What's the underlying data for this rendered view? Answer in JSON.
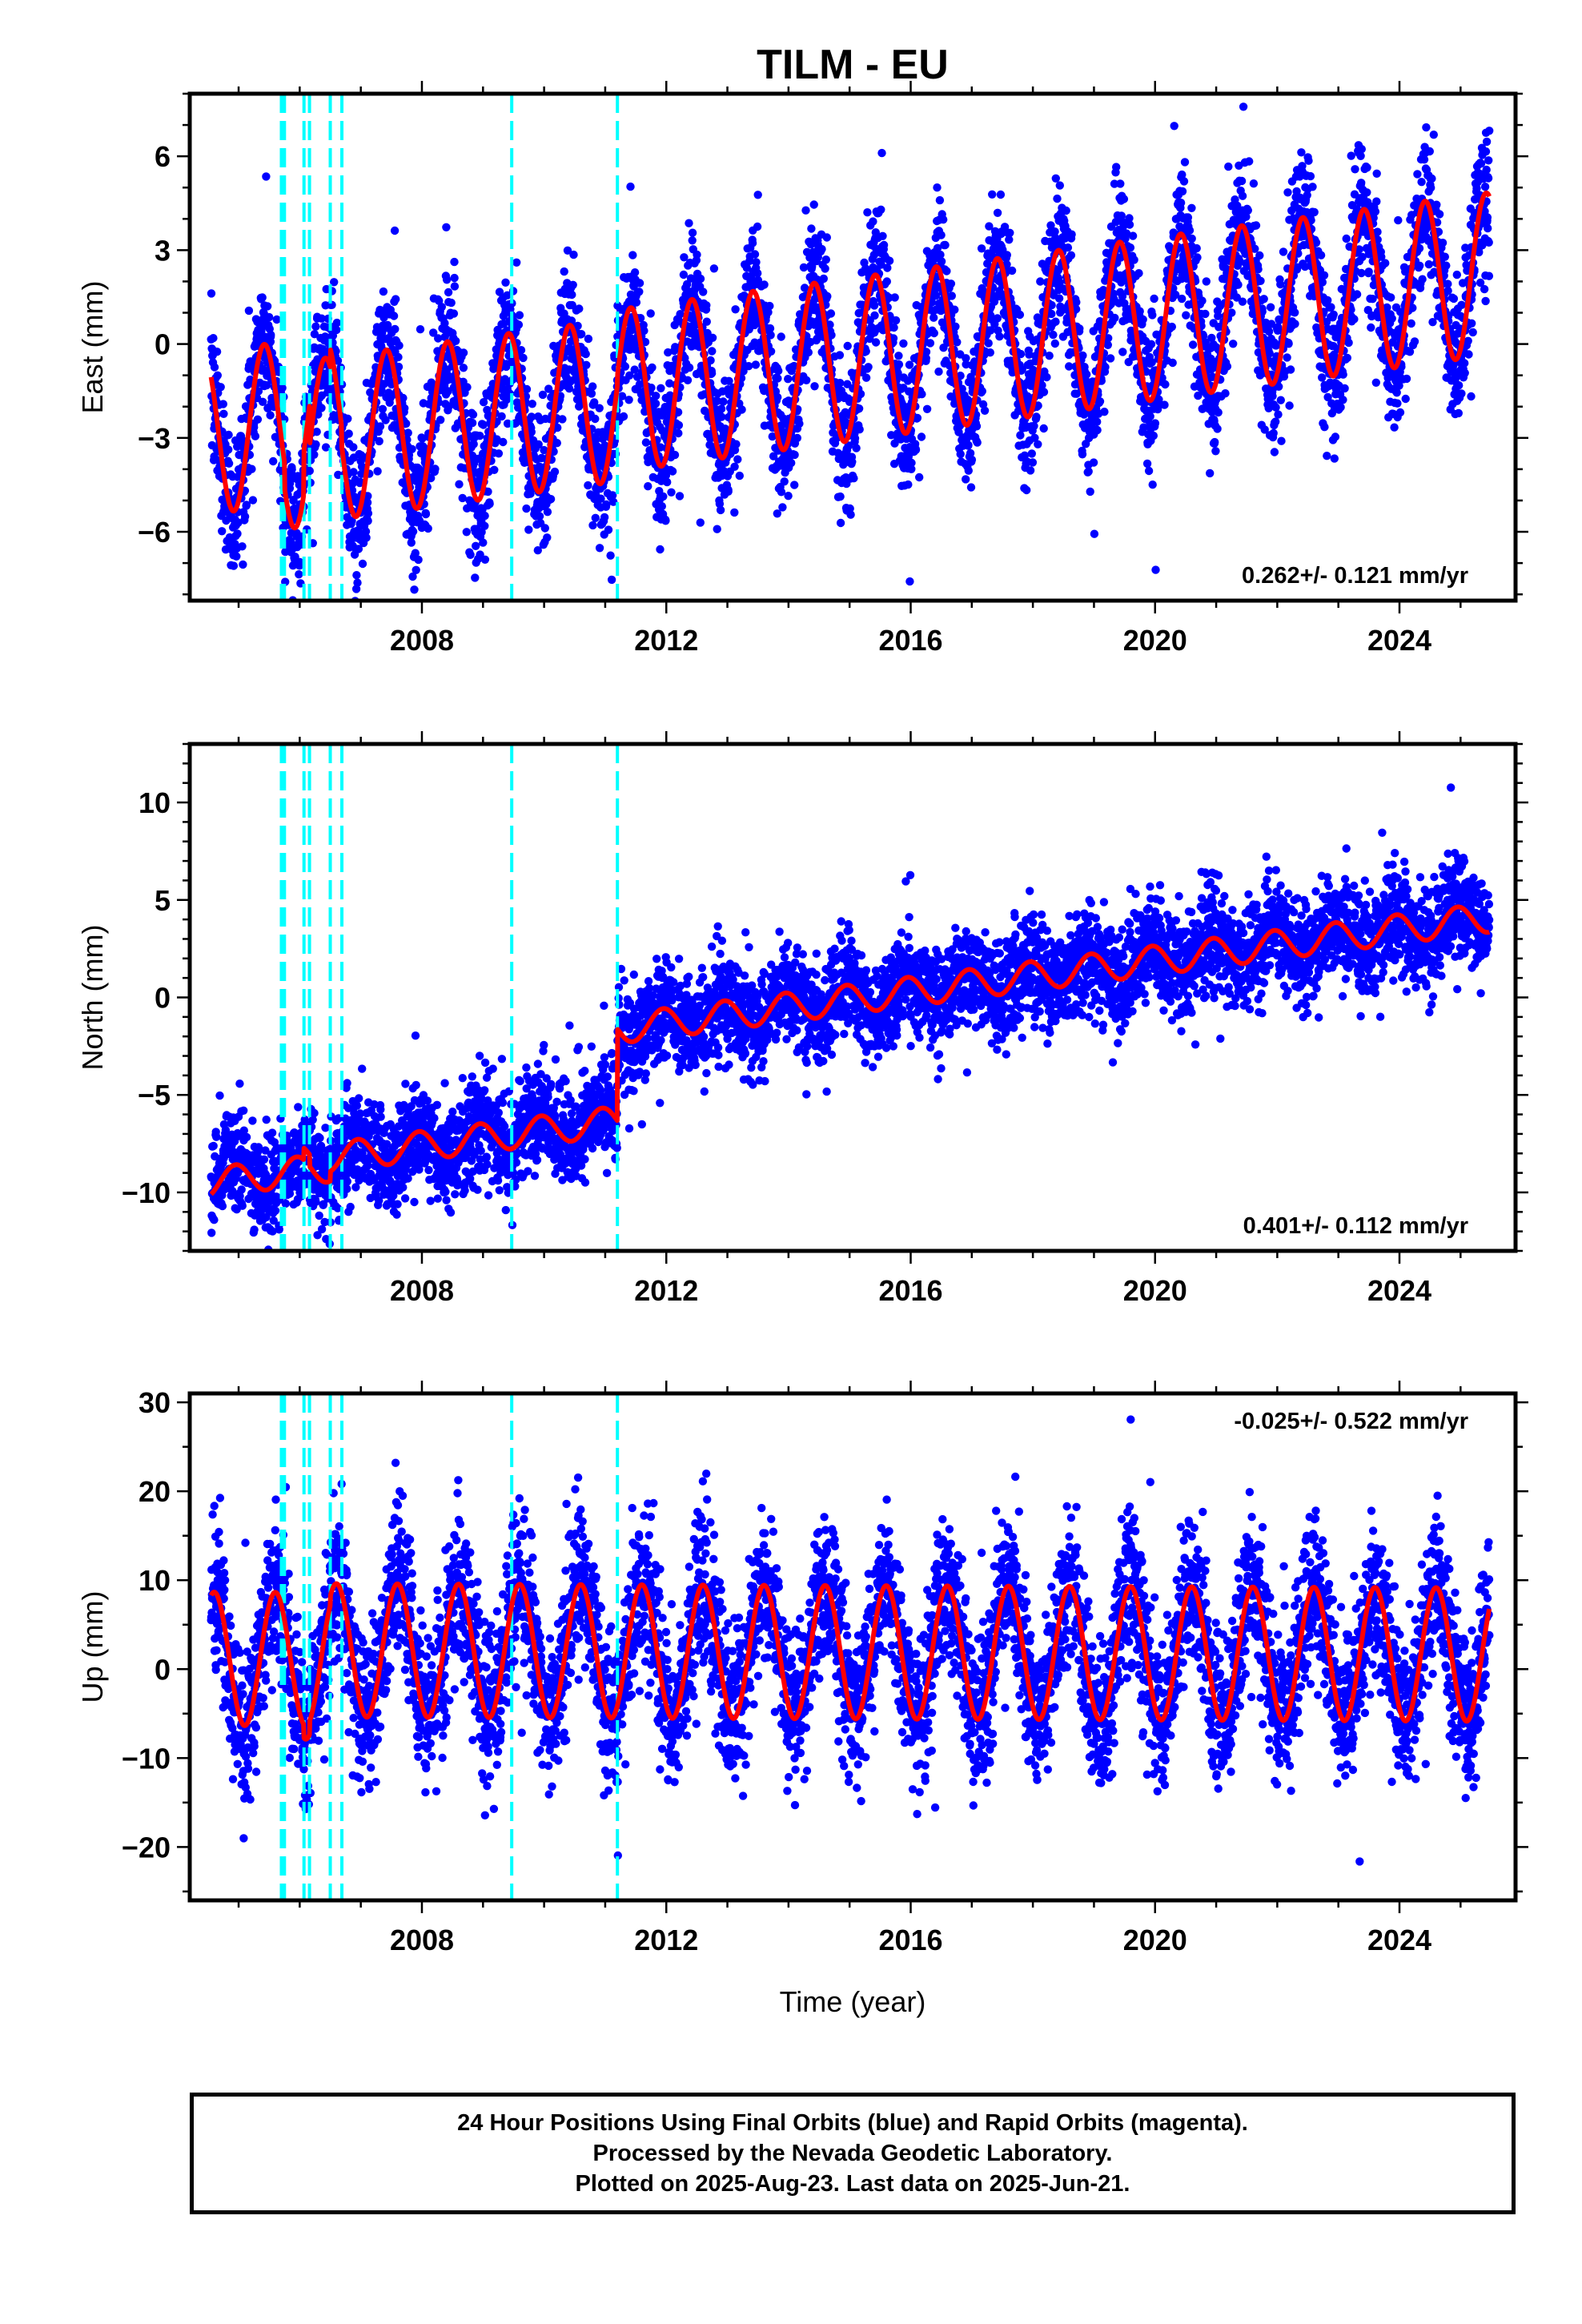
{
  "chart_data": {
    "type": "scatter",
    "title": "TILM - EU",
    "xlabel": "Time (year)",
    "x_range": [
      2004.2,
      2025.9
    ],
    "x_ticks": [
      2008,
      2012,
      2016,
      2020,
      2024
    ],
    "x_tick_labels": [
      "2008",
      "2012",
      "2016",
      "2020",
      "2024"
    ],
    "x_minor_step": 1,
    "data_span": [
      2004.55,
      2025.47
    ],
    "breaks": [
      2005.7,
      2005.75,
      2006.07,
      2006.16,
      2006.5,
      2006.69,
      2009.47,
      2011.2
    ],
    "legend": "none",
    "grid": false,
    "panels": [
      {
        "id": "east",
        "ylabel": "East (mm)",
        "ylim": [
          -8.2,
          8.0
        ],
        "y_ticks": [
          -6,
          -3,
          0,
          3,
          6
        ],
        "y_tick_labels": [
          "−6",
          "−3",
          "0",
          "3",
          "6"
        ],
        "y_minor_step": 1,
        "rate_label": "0.262+/- 0.121 mm/yr",
        "rate_position": "bottom-right",
        "series_points": {
          "name": "",
          "color": "#0000ff",
          "noise_sd": 1.1,
          "model_ref": "fit_line",
          "count": 5600
        },
        "fit_line": {
          "color": "#ff0000",
          "ref_year": 2015.0,
          "offset_at_ref": -0.5,
          "rate": 0.262,
          "annual_amplitude": 2.6,
          "annual_peak_doy": 0.42,
          "steps": [
            [
              2005.75,
              -0.8
            ],
            [
              2006.07,
              1.4
            ],
            [
              2006.16,
              -1.3
            ],
            [
              2006.5,
              0.6
            ],
            [
              2006.69,
              -0.6
            ],
            [
              2011.2,
              0.3
            ]
          ]
        }
      },
      {
        "id": "north",
        "ylabel": "North (mm)",
        "ylim": [
          -13.0,
          13.0
        ],
        "y_ticks": [
          -10,
          -5,
          0,
          5,
          10
        ],
        "y_tick_labels": [
          "−10",
          "−5",
          "0",
          "5",
          "10"
        ],
        "y_minor_step": 1,
        "rate_label": "0.401+/- 0.112 mm/yr",
        "rate_position": "bottom-right",
        "series_points": {
          "name": "",
          "color": "#0000ff",
          "noise_sd": 1.3,
          "model_ref": "fit_line",
          "count": 5600
        },
        "fit_line": {
          "color": "#ff0000",
          "ref_year": 2015.0,
          "offset_at_ref": -0.1,
          "rate": 0.401,
          "annual_amplitude": 0.75,
          "annual_peak_doy": 0.95,
          "steps": [
            [
              2006.07,
              0.6
            ],
            [
              2006.16,
              -0.6
            ],
            [
              2006.5,
              0.5
            ],
            [
              2011.2,
              4.7
            ]
          ]
        }
      },
      {
        "id": "up",
        "ylabel": "Up (mm)",
        "ylim": [
          -26.0,
          31.0
        ],
        "y_ticks": [
          -20,
          -10,
          0,
          10,
          20,
          30
        ],
        "y_tick_labels": [
          "−20",
          "−10",
          "0",
          "10",
          "20",
          "30"
        ],
        "y_minor_step": 5,
        "rate_label": "-0.025+/- 0.522 mm/yr",
        "rate_position": "top-right",
        "series_points": {
          "name": "",
          "color": "#0000ff",
          "noise_sd": 4.2,
          "model_ref": "fit_line",
          "count": 5600
        },
        "fit_line": {
          "color": "#ff0000",
          "ref_year": 2015.0,
          "offset_at_ref": 1.9,
          "rate": -0.025,
          "annual_amplitude": 7.5,
          "annual_peak_doy": 0.6,
          "steps": [
            [
              2006.07,
              -1.5
            ],
            [
              2006.16,
              1.5
            ],
            [
              2006.5,
              1.0
            ],
            [
              2006.69,
              0.0
            ]
          ]
        }
      }
    ]
  },
  "footer": {
    "line1": "24 Hour Positions Using Final Orbits (blue) and Rapid Orbits (magenta).",
    "line2": "Processed by the Nevada Geodetic Laboratory.",
    "line3": "Plotted on 2025-Aug-23. Last data on 2025-Jun-21."
  }
}
